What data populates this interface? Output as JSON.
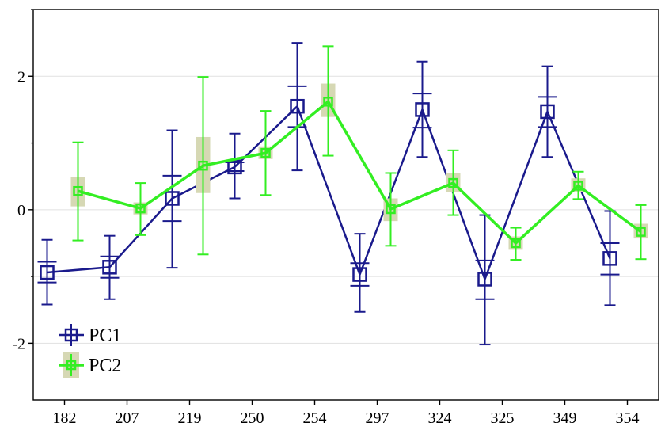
{
  "chart_data": {
    "type": "line",
    "title": "",
    "xlabel": "",
    "ylabel": "",
    "categories": [
      "182",
      "207",
      "219",
      "250",
      "254",
      "297",
      "324",
      "325",
      "349",
      "354"
    ],
    "ylim": [
      -2.85,
      3.0
    ],
    "yticks": [
      -2,
      0,
      2
    ],
    "ytick_labels": [
      "-2",
      "0",
      "2"
    ],
    "grid": true,
    "legend_position": "bottom-left",
    "series": [
      {
        "name": "PC1",
        "color": "#1a1a8c",
        "marker": "open-square",
        "mean": [
          -0.94,
          -0.86,
          0.17,
          0.64,
          1.55,
          -0.97,
          1.5,
          -1.04,
          1.47,
          -0.73
        ],
        "box_low": [
          -1.09,
          -1.02,
          -0.17,
          0.58,
          1.24,
          -1.14,
          1.23,
          -1.34,
          1.24,
          -0.97
        ],
        "box_high": [
          -0.78,
          -0.7,
          0.51,
          0.71,
          1.85,
          -0.8,
          1.74,
          -0.76,
          1.69,
          -0.5
        ],
        "whisker_low": [
          -1.42,
          -1.34,
          -0.87,
          0.17,
          0.59,
          -1.53,
          0.79,
          -2.02,
          0.79,
          -1.43
        ],
        "whisker_high": [
          -0.45,
          -0.39,
          1.19,
          1.14,
          2.5,
          -0.36,
          2.22,
          -0.08,
          2.15,
          -0.02
        ]
      },
      {
        "name": "PC2",
        "color": "#33ee22",
        "marker": "open-square",
        "mean": [
          0.28,
          0.02,
          0.66,
          0.85,
          1.62,
          0.01,
          0.4,
          -0.5,
          0.36,
          -0.33
        ],
        "box_low": [
          0.05,
          -0.07,
          0.25,
          0.76,
          1.39,
          -0.17,
          0.27,
          -0.6,
          0.26,
          -0.43
        ],
        "box_high": [
          0.49,
          0.11,
          1.09,
          0.95,
          1.89,
          0.17,
          0.55,
          -0.4,
          0.47,
          -0.21
        ],
        "whisker_low": [
          -0.46,
          -0.38,
          -0.67,
          0.22,
          0.81,
          -0.54,
          -0.08,
          -0.75,
          0.16,
          -0.74
        ],
        "whisker_high": [
          1.01,
          0.4,
          1.99,
          1.48,
          2.45,
          0.55,
          0.89,
          -0.27,
          0.57,
          0.07
        ]
      }
    ]
  }
}
